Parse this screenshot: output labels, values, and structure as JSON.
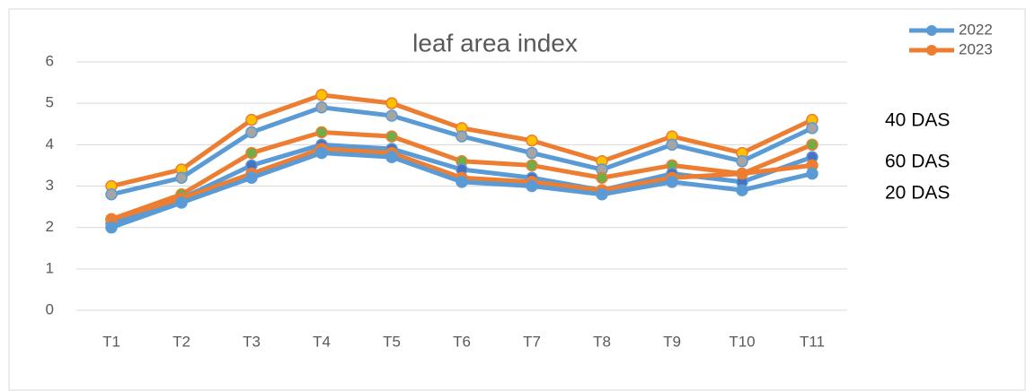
{
  "chart_data": {
    "type": "line",
    "title": "leaf area index",
    "categories": [
      "T1",
      "T2",
      "T3",
      "T4",
      "T5",
      "T6",
      "T7",
      "T8",
      "T9",
      "T10",
      "T11"
    ],
    "series": [
      {
        "color": "#ed7d31",
        "marker_color": "#ffc000",
        "values": [
          3.0,
          3.4,
          4.6,
          5.2,
          5.0,
          4.4,
          4.1,
          3.6,
          4.2,
          3.8,
          4.6
        ]
      },
      {
        "color": "#5b9bd5",
        "marker_color": "#a5a5a5",
        "values": [
          2.8,
          3.2,
          4.3,
          4.9,
          4.7,
          4.2,
          3.8,
          3.4,
          4.0,
          3.6,
          4.4
        ]
      },
      {
        "color": "#ed7d31",
        "marker_color": "#70ad47",
        "values": [
          2.2,
          2.8,
          3.8,
          4.3,
          4.2,
          3.6,
          3.5,
          3.2,
          3.5,
          3.3,
          4.0
        ]
      },
      {
        "color": "#5b9bd5",
        "marker_color": "#4472c4",
        "values": [
          2.1,
          2.7,
          3.5,
          4.0,
          3.9,
          3.4,
          3.2,
          2.9,
          3.3,
          3.1,
          3.7
        ]
      },
      {
        "color": "#ed7d31",
        "marker_color": "#ed7d31",
        "values": [
          2.2,
          2.7,
          3.3,
          3.9,
          3.8,
          3.2,
          3.1,
          2.9,
          3.2,
          3.3,
          3.5
        ]
      },
      {
        "color": "#5b9bd5",
        "marker_color": "#5b9bd5",
        "values": [
          2.0,
          2.6,
          3.2,
          3.8,
          3.7,
          3.1,
          3.0,
          2.8,
          3.1,
          2.9,
          3.3
        ]
      }
    ],
    "legend": [
      {
        "label": "2022",
        "color": "#5b9bd5"
      },
      {
        "label": "2023",
        "color": "#ed7d31"
      }
    ],
    "annotations": [
      "40 DAS",
      "60 DAS",
      "20 DAS"
    ],
    "ylim": [
      0,
      6
    ],
    "yticks": [
      0,
      1,
      2,
      3,
      4,
      5,
      6
    ],
    "grid": true
  }
}
